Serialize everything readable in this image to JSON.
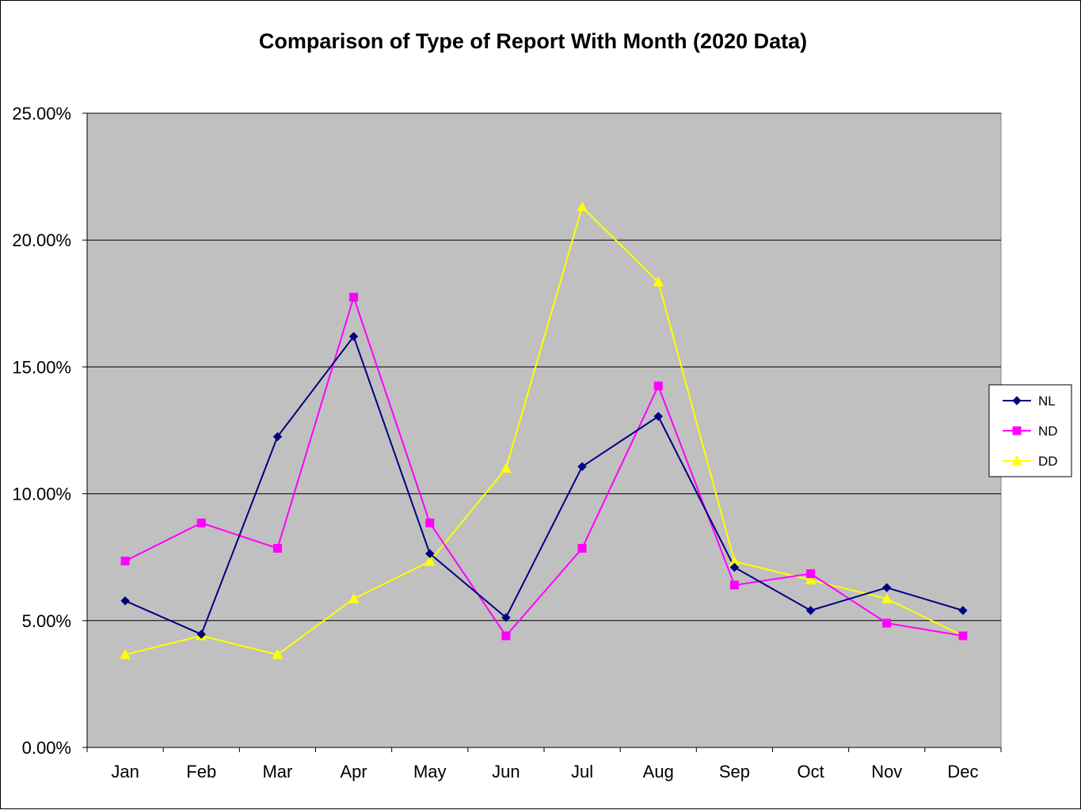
{
  "chart_data": {
    "type": "line",
    "title": "Comparison of Type of Report With Month (2020 Data)",
    "xlabel": "",
    "ylabel": "",
    "categories": [
      "Jan",
      "Feb",
      "Mar",
      "Apr",
      "May",
      "Jun",
      "Jul",
      "Aug",
      "Sep",
      "Oct",
      "Nov",
      "Dec"
    ],
    "ylim": [
      0,
      0.25
    ],
    "yticks": [
      0,
      0.05,
      0.1,
      0.15,
      0.2,
      0.25
    ],
    "ytick_labels": [
      "0.00%",
      "5.00%",
      "10.00%",
      "15.00%",
      "20.00%",
      "25.00%"
    ],
    "grid": true,
    "legend_position": "right",
    "plot_background": "#c0c0c0",
    "series": [
      {
        "name": "NL",
        "color": "#000080",
        "marker": "diamond",
        "values": [
          0.0578,
          0.0446,
          0.1225,
          0.162,
          0.0764,
          0.0512,
          0.1107,
          0.1305,
          0.071,
          0.054,
          0.063,
          0.054
        ]
      },
      {
        "name": "ND",
        "color": "#ff00ff",
        "marker": "square",
        "values": [
          0.0735,
          0.0885,
          0.0785,
          0.1775,
          0.0885,
          0.044,
          0.0785,
          0.1425,
          0.064,
          0.0685,
          0.049,
          0.044
        ]
      },
      {
        "name": "DD",
        "color": "#ffff00",
        "marker": "triangle",
        "values": [
          0.0366,
          0.044,
          0.0366,
          0.0586,
          0.0733,
          0.11,
          0.213,
          0.1835,
          0.0733,
          0.066,
          0.0586,
          0.044
        ]
      }
    ]
  }
}
